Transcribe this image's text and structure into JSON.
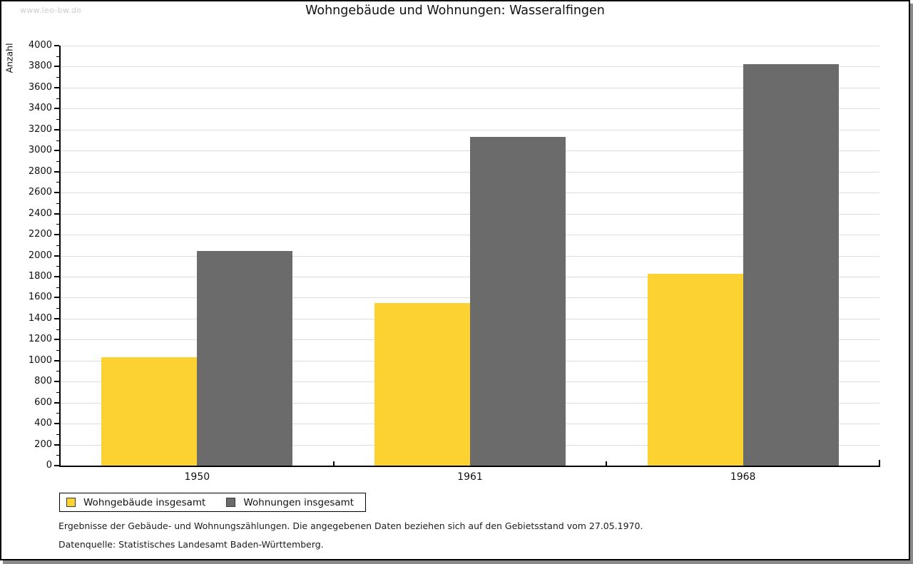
{
  "watermark": "www.leo-bw.de",
  "footnotes": {
    "line1": "Ergebnisse der Gebäude- und Wohnungszählungen. Die angegebenen Daten beziehen sich auf den Gebietsstand vom 27.05.1970.",
    "line2": "Datenquelle: Statistisches Landesamt Baden-Württemberg."
  },
  "chart_data": {
    "type": "bar",
    "title": "Wohngebäude und Wohnungen: Wasseralfingen",
    "xlabel": "",
    "ylabel": "Anzahl",
    "categories": [
      "1950",
      "1961",
      "1968"
    ],
    "series": [
      {
        "name": "Wohngebäude insgesamt",
        "color": "#FCD232",
        "values": [
          1030,
          1545,
          1830
        ]
      },
      {
        "name": "Wohnungen insgesamt",
        "color": "#6B6B6B",
        "values": [
          2046,
          3134,
          3823
        ]
      }
    ],
    "ylim": [
      0,
      4000
    ],
    "ytick_interval": 200,
    "yminor_interval": 100,
    "grid": true,
    "legend_position": "bottom",
    "gridline_color": "#DCDCDC",
    "axis_color": "#000000"
  }
}
